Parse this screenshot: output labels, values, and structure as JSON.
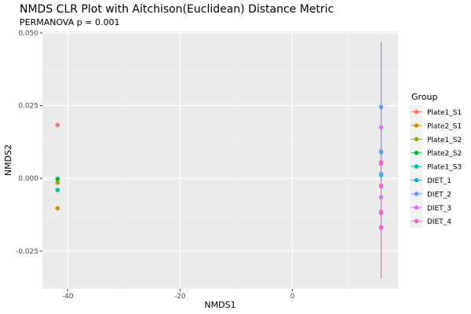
{
  "chart_data": {
    "type": "scatter",
    "title": "NMDS CLR Plot with Aitchison(Euclidean) Distance Metric",
    "subtitle": "PERMANOVA p = 0.001",
    "xlabel": "NMDS1",
    "ylabel": "NMDS2",
    "xlim": [
      -44.5,
      18.8
    ],
    "ylim": [
      -0.038,
      0.0505
    ],
    "x_ticks": [
      -40,
      -20,
      0
    ],
    "y_ticks": [
      -0.025,
      0.0,
      0.025,
      0.05
    ],
    "x_tick_labels": [
      "-40",
      "-20",
      "0"
    ],
    "y_tick_labels": [
      "-0.025",
      "0.000",
      "0.025",
      "0.050"
    ],
    "grid": true,
    "legend_title": "Group",
    "legend_position": "right",
    "series": [
      {
        "name": "Plate1_S1",
        "color": "#F8766D",
        "points": [
          [
            -41.8,
            0.0183
          ]
        ]
      },
      {
        "name": "Plate2_S1",
        "color": "#D39200",
        "points": [
          [
            -41.8,
            -0.0103
          ]
        ]
      },
      {
        "name": "Plate1_S2",
        "color": "#93AA00",
        "points": [
          [
            -41.8,
            -0.0015
          ]
        ]
      },
      {
        "name": "Plate2_S2",
        "color": "#00BA38",
        "points": [
          [
            -41.8,
            -0.0002
          ]
        ]
      },
      {
        "name": "Plate1_S3",
        "color": "#00C19F",
        "points": [
          [
            -41.8,
            -0.004
          ]
        ]
      },
      {
        "name": "DIET_1",
        "color": "#00B9E3",
        "points": [
          [
            15.8,
            0.0012
          ],
          [
            15.8,
            0.009
          ]
        ]
      },
      {
        "name": "DIET_2",
        "color": "#619CFF",
        "points": [
          [
            15.8,
            0.0245
          ],
          [
            15.8,
            0.0092
          ],
          [
            15.8,
            0.0015
          ]
        ],
        "range": [
          -0.001,
          0.0468
        ]
      },
      {
        "name": "DIET_3",
        "color": "#DB72FB",
        "points": [
          [
            15.8,
            0.0175
          ],
          [
            15.8,
            0.005
          ],
          [
            15.8,
            -0.0025
          ],
          [
            15.8,
            -0.0065
          ],
          [
            15.8,
            -0.012
          ],
          [
            15.8,
            -0.0168
          ]
        ]
      },
      {
        "name": "DIET_4",
        "color": "#FF61C3",
        "points": [
          [
            15.8,
            0.0055
          ],
          [
            15.8,
            -0.0028
          ],
          [
            15.8,
            -0.0115
          ],
          [
            15.8,
            -0.017
          ]
        ],
        "range": [
          -0.0345,
          0.0185
        ]
      }
    ]
  }
}
